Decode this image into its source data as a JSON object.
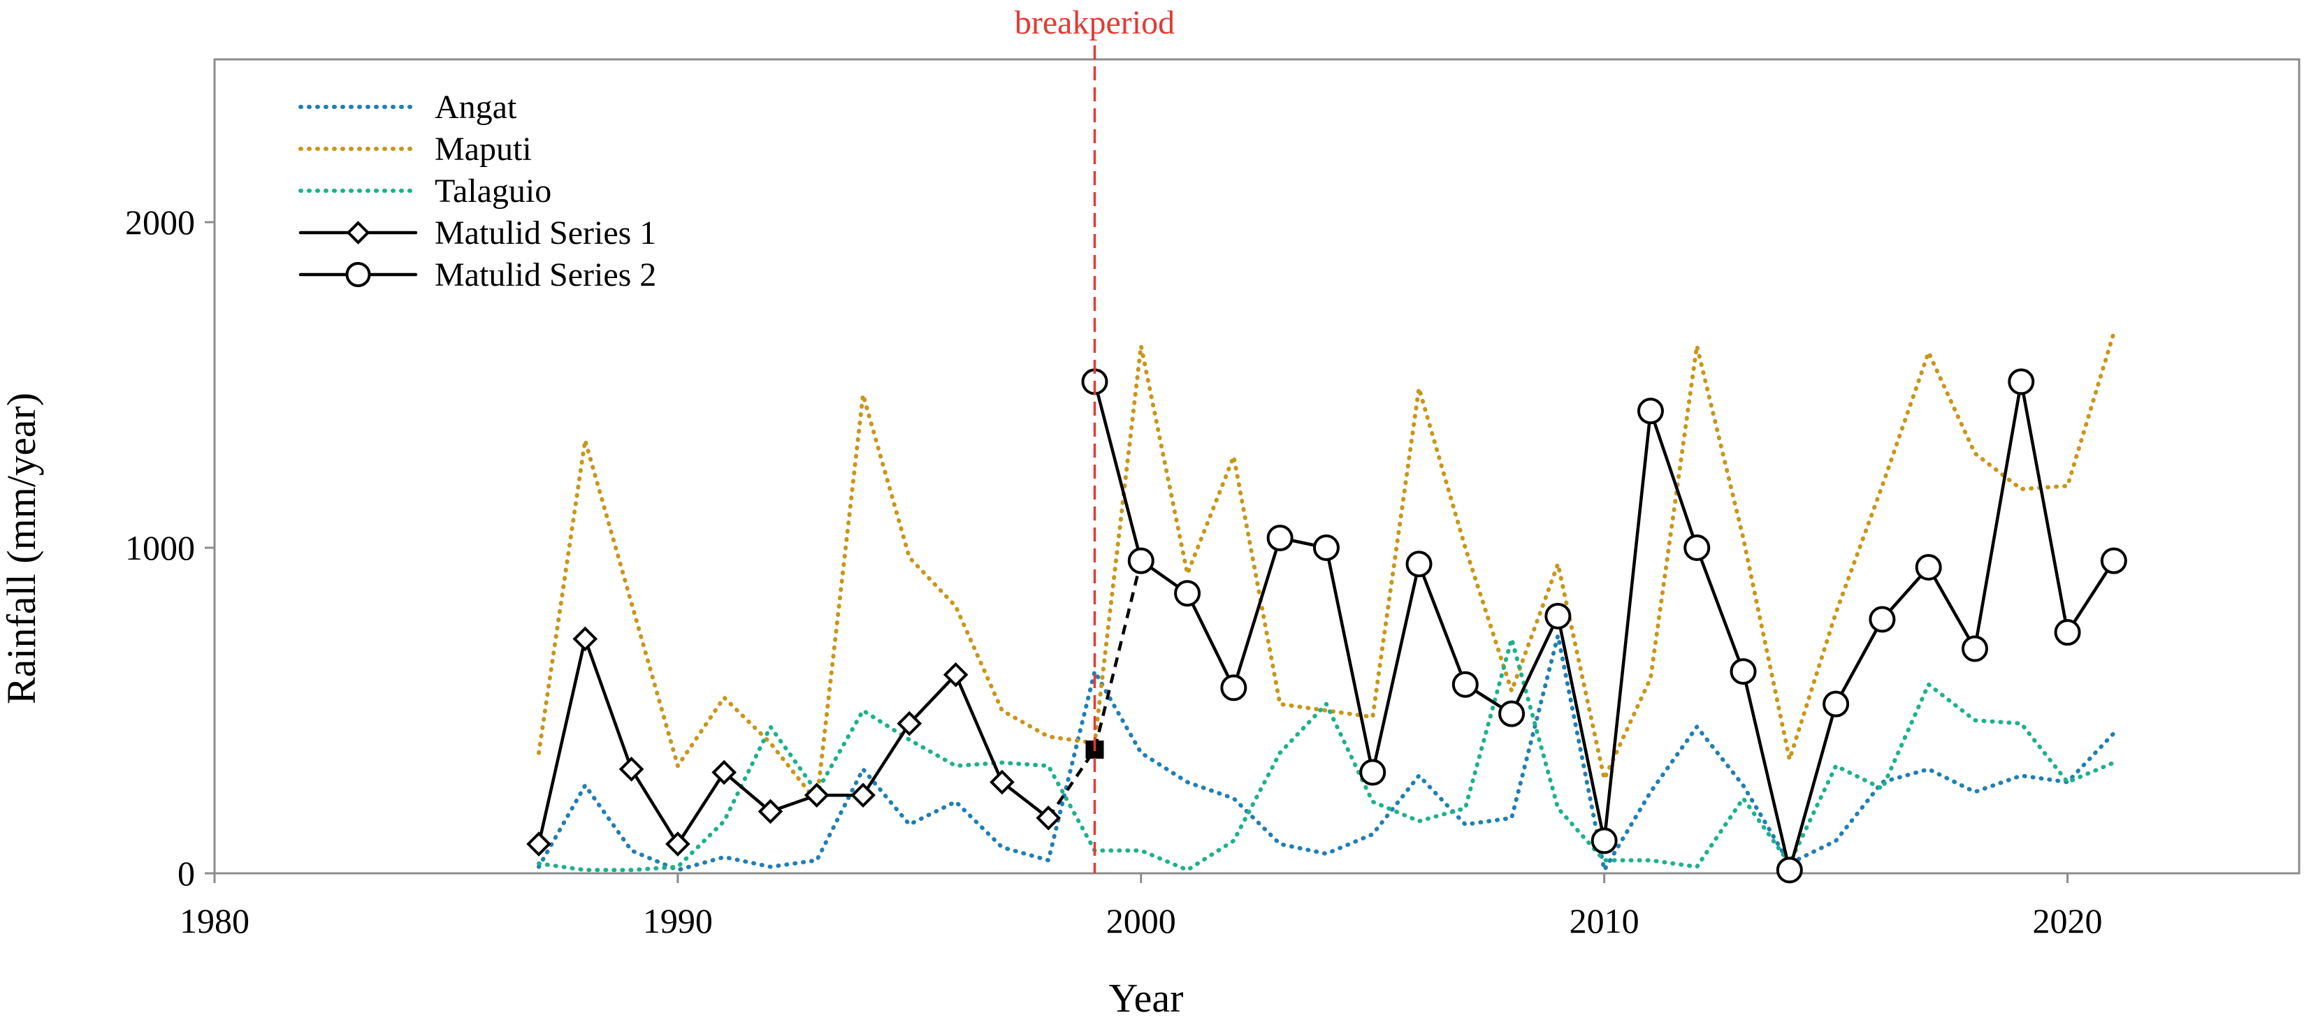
{
  "chart_data": {
    "type": "line",
    "title": "",
    "xlabel": "Year",
    "ylabel": "Rainfall (mm/year)",
    "xlim": [
      1980,
      2025
    ],
    "ylim": [
      0,
      2500
    ],
    "xticks": [
      1980,
      1990,
      2000,
      2010,
      2020
    ],
    "yticks": [
      0,
      1000,
      2000
    ],
    "grid": false,
    "legend_position": "top-left",
    "annotation": {
      "label": "breakperiod",
      "x": 1999,
      "color": "#e53935"
    },
    "break_marker": {
      "x": 1999,
      "y": 380,
      "color": "#000000"
    },
    "series": [
      {
        "name": "Angat",
        "style": "dotted",
        "color": "#1f7fb5",
        "marker": "none",
        "x": [
          1987,
          1988,
          1989,
          1990,
          1991,
          1992,
          1993,
          1994,
          1995,
          1996,
          1997,
          1998,
          1999,
          2000,
          2001,
          2002,
          2003,
          2004,
          2005,
          2006,
          2007,
          2008,
          2009,
          2010,
          2011,
          2012,
          2013,
          2014,
          2015,
          2016,
          2017,
          2018,
          2019,
          2020,
          2021
        ],
        "values": [
          20,
          270,
          70,
          10,
          50,
          20,
          40,
          320,
          150,
          220,
          80,
          40,
          620,
          370,
          280,
          230,
          90,
          60,
          120,
          300,
          150,
          170,
          730,
          10,
          250,
          450,
          270,
          30,
          100,
          280,
          320,
          250,
          300,
          280,
          430
        ]
      },
      {
        "name": "Maputi",
        "style": "dotted",
        "color": "#c9961a",
        "marker": "none",
        "x": [
          1987,
          1988,
          1989,
          1990,
          1991,
          1992,
          1993,
          1994,
          1995,
          1996,
          1997,
          1998,
          1999,
          2000,
          2001,
          2002,
          2003,
          2004,
          2005,
          2006,
          2007,
          2008,
          2009,
          2010,
          2011,
          2012,
          2013,
          2014,
          2015,
          2016,
          2017,
          2018,
          2019,
          2020,
          2021
        ],
        "values": [
          370,
          1330,
          830,
          330,
          540,
          400,
          220,
          1470,
          970,
          820,
          500,
          420,
          400,
          1620,
          920,
          1280,
          520,
          500,
          480,
          1490,
          1000,
          560,
          950,
          290,
          600,
          1620,
          1030,
          350,
          800,
          1190,
          1600,
          1290,
          1180,
          1190,
          1660
        ]
      },
      {
        "name": "Talaguio",
        "style": "dotted",
        "color": "#1bb28a",
        "marker": "none",
        "x": [
          1987,
          1988,
          1989,
          1990,
          1991,
          1992,
          1993,
          1994,
          1995,
          1996,
          1997,
          1998,
          1999,
          2000,
          2001,
          2002,
          2003,
          2004,
          2005,
          2006,
          2007,
          2008,
          2009,
          2010,
          2011,
          2012,
          2013,
          2014,
          2015,
          2016,
          2017,
          2018,
          2019,
          2020,
          2021
        ],
        "values": [
          30,
          10,
          10,
          20,
          160,
          450,
          250,
          500,
          410,
          330,
          340,
          330,
          70,
          70,
          10,
          100,
          370,
          520,
          220,
          160,
          200,
          720,
          200,
          40,
          40,
          20,
          230,
          30,
          330,
          260,
          580,
          470,
          460,
          280,
          340
        ]
      },
      {
        "name": "Matulid Series 1",
        "style": "solid",
        "color": "#000000",
        "marker": "diamond",
        "x": [
          1987,
          1988,
          1989,
          1990,
          1991,
          1992,
          1993,
          1994,
          1995,
          1996,
          1997,
          1998
        ],
        "values": [
          90,
          720,
          320,
          90,
          310,
          190,
          240,
          240,
          460,
          610,
          280,
          170
        ]
      },
      {
        "name": "Matulid Series 2",
        "style": "solid",
        "color": "#000000",
        "marker": "circle",
        "x": [
          1999,
          2000,
          2001,
          2002,
          2003,
          2004,
          2005,
          2006,
          2007,
          2008,
          2009,
          2010,
          2011,
          2012,
          2013,
          2014,
          2015,
          2016,
          2017,
          2018,
          2019,
          2020,
          2021
        ],
        "values": [
          1510,
          960,
          860,
          570,
          1030,
          1000,
          310,
          950,
          580,
          490,
          790,
          100,
          1420,
          1000,
          620,
          10,
          520,
          780,
          940,
          690,
          1510,
          740,
          960
        ]
      }
    ]
  }
}
